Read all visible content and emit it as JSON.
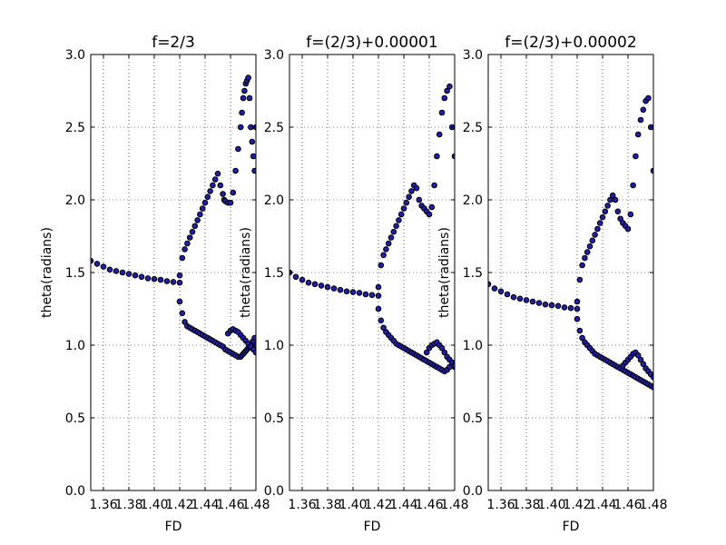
{
  "chart_data": [
    {
      "type": "scatter",
      "title": "f=2/3",
      "xlabel": "FD",
      "ylabel": "theta(radians)",
      "xlim": [
        1.35,
        1.48
      ],
      "ylim": [
        0.0,
        3.0
      ],
      "xticks": [
        "1.36",
        "1.38",
        "1.40",
        "1.42",
        "1.44",
        "1.46",
        "1.48"
      ],
      "yticks": [
        "0.0",
        "0.5",
        "1.0",
        "1.5",
        "2.0",
        "2.5",
        "3.0"
      ],
      "grid": true,
      "marker_fill": "#1f1fa8",
      "marker_edge": "#000000",
      "x": [
        1.35,
        1.355,
        1.36,
        1.365,
        1.37,
        1.375,
        1.38,
        1.385,
        1.39,
        1.395,
        1.4,
        1.405,
        1.41,
        1.415,
        1.42,
        1.42,
        1.422,
        1.424,
        1.426,
        1.428,
        1.43,
        1.432,
        1.434,
        1.436,
        1.438,
        1.44,
        1.442,
        1.444,
        1.446,
        1.448,
        1.45,
        1.452,
        1.454,
        1.455,
        1.456,
        1.458,
        1.46,
        1.462,
        1.464,
        1.466,
        1.468,
        1.469,
        1.47,
        1.471,
        1.472,
        1.473,
        1.474,
        1.475,
        1.476,
        1.477,
        1.478,
        1.479,
        1.48,
        1.42,
        1.422,
        1.424,
        1.426,
        1.428,
        1.43,
        1.432,
        1.434,
        1.436,
        1.438,
        1.44,
        1.442,
        1.444,
        1.446,
        1.448,
        1.45,
        1.452,
        1.454,
        1.456,
        1.458,
        1.46,
        1.462,
        1.464,
        1.466,
        1.468,
        1.469,
        1.47,
        1.471,
        1.472,
        1.473,
        1.474,
        1.475,
        1.476,
        1.477,
        1.478,
        1.479,
        1.48,
        1.458,
        1.46,
        1.462,
        1.464,
        1.466,
        1.468,
        1.47,
        1.472,
        1.474,
        1.476,
        1.478,
        1.48
      ],
      "y": [
        1.58,
        1.56,
        1.54,
        1.52,
        1.51,
        1.5,
        1.49,
        1.48,
        1.47,
        1.46,
        1.455,
        1.45,
        1.44,
        1.435,
        1.43,
        1.48,
        1.6,
        1.66,
        1.7,
        1.74,
        1.78,
        1.82,
        1.86,
        1.9,
        1.94,
        1.98,
        2.02,
        2.06,
        2.1,
        2.14,
        2.18,
        2.1,
        2.04,
        2.0,
        1.99,
        1.98,
        1.98,
        2.05,
        2.2,
        2.35,
        2.5,
        2.6,
        2.7,
        2.75,
        2.8,
        2.82,
        2.84,
        2.7,
        2.5,
        2.4,
        2.3,
        2.2,
        2.5,
        1.3,
        1.22,
        1.16,
        1.13,
        1.12,
        1.11,
        1.1,
        1.09,
        1.08,
        1.07,
        1.06,
        1.05,
        1.04,
        1.03,
        1.02,
        1.01,
        1.0,
        0.99,
        0.97,
        0.96,
        0.95,
        0.94,
        0.93,
        0.92,
        0.92,
        0.93,
        0.94,
        0.95,
        0.96,
        0.97,
        0.98,
        0.99,
        1.0,
        1.02,
        1.03,
        1.05,
        1.0,
        1.08,
        1.1,
        1.11,
        1.1,
        1.09,
        1.07,
        1.05,
        1.03,
        1.01,
        0.99,
        0.97,
        0.95
      ]
    },
    {
      "type": "scatter",
      "title": "f=(2/3)+0.00001",
      "xlabel": "FD",
      "ylabel": "theta(radians)",
      "xlim": [
        1.35,
        1.48
      ],
      "ylim": [
        0.0,
        3.0
      ],
      "xticks": [
        "1.36",
        "1.38",
        "1.40",
        "1.42",
        "1.44",
        "1.46",
        "1.48"
      ],
      "yticks": [
        "0.0",
        "0.5",
        "1.0",
        "1.5",
        "2.0",
        "2.5",
        "3.0"
      ],
      "grid": true,
      "marker_fill": "#1f1fa8",
      "marker_edge": "#000000",
      "x": [
        1.35,
        1.355,
        1.36,
        1.365,
        1.37,
        1.375,
        1.38,
        1.385,
        1.39,
        1.395,
        1.4,
        1.405,
        1.41,
        1.415,
        1.42,
        1.42,
        1.422,
        1.424,
        1.426,
        1.428,
        1.43,
        1.432,
        1.434,
        1.436,
        1.438,
        1.44,
        1.442,
        1.444,
        1.446,
        1.448,
        1.45,
        1.452,
        1.454,
        1.456,
        1.458,
        1.46,
        1.462,
        1.464,
        1.466,
        1.468,
        1.47,
        1.472,
        1.474,
        1.476,
        1.478,
        1.48,
        1.42,
        1.422,
        1.424,
        1.426,
        1.428,
        1.43,
        1.432,
        1.434,
        1.436,
        1.438,
        1.44,
        1.442,
        1.444,
        1.446,
        1.448,
        1.45,
        1.452,
        1.454,
        1.456,
        1.458,
        1.46,
        1.462,
        1.464,
        1.466,
        1.468,
        1.47,
        1.472,
        1.474,
        1.476,
        1.478,
        1.48,
        1.458,
        1.46,
        1.462,
        1.464,
        1.466,
        1.468,
        1.47,
        1.472,
        1.474,
        1.476,
        1.478,
        1.48
      ],
      "y": [
        1.5,
        1.47,
        1.45,
        1.43,
        1.42,
        1.41,
        1.4,
        1.39,
        1.38,
        1.37,
        1.365,
        1.36,
        1.35,
        1.345,
        1.34,
        1.4,
        1.55,
        1.62,
        1.66,
        1.7,
        1.74,
        1.78,
        1.82,
        1.86,
        1.9,
        1.94,
        1.98,
        2.02,
        2.06,
        2.1,
        2.08,
        2.0,
        1.96,
        1.94,
        1.92,
        1.9,
        1.95,
        2.1,
        2.3,
        2.45,
        2.6,
        2.7,
        2.75,
        2.78,
        2.5,
        2.3,
        1.25,
        1.17,
        1.12,
        1.09,
        1.07,
        1.05,
        1.03,
        1.01,
        1.0,
        0.99,
        0.98,
        0.97,
        0.96,
        0.95,
        0.94,
        0.93,
        0.92,
        0.91,
        0.9,
        0.89,
        0.88,
        0.87,
        0.86,
        0.85,
        0.84,
        0.83,
        0.82,
        0.83,
        0.85,
        0.88,
        0.85,
        0.95,
        0.98,
        1.0,
        1.01,
        1.02,
        1.0,
        0.98,
        0.95,
        0.92,
        0.9,
        0.88,
        0.86
      ]
    },
    {
      "type": "scatter",
      "title": "f=(2/3)+0.00002",
      "xlabel": "FD",
      "ylabel": "theta(radians)",
      "xlim": [
        1.35,
        1.48
      ],
      "ylim": [
        0.0,
        3.0
      ],
      "xticks": [
        "1.36",
        "1.38",
        "1.40",
        "1.42",
        "1.44",
        "1.46",
        "1.48"
      ],
      "yticks": [
        "0.0",
        "0.5",
        "1.0",
        "1.5",
        "2.0",
        "2.5",
        "3.0"
      ],
      "grid": true,
      "marker_fill": "#1f1fa8",
      "marker_edge": "#000000",
      "x": [
        1.35,
        1.355,
        1.36,
        1.365,
        1.37,
        1.375,
        1.38,
        1.385,
        1.39,
        1.395,
        1.4,
        1.405,
        1.41,
        1.415,
        1.42,
        1.42,
        1.422,
        1.424,
        1.426,
        1.428,
        1.43,
        1.432,
        1.434,
        1.436,
        1.438,
        1.44,
        1.442,
        1.444,
        1.446,
        1.448,
        1.45,
        1.452,
        1.454,
        1.456,
        1.458,
        1.46,
        1.462,
        1.464,
        1.466,
        1.468,
        1.47,
        1.472,
        1.474,
        1.476,
        1.478,
        1.48,
        1.42,
        1.422,
        1.424,
        1.426,
        1.428,
        1.43,
        1.432,
        1.434,
        1.436,
        1.438,
        1.44,
        1.442,
        1.444,
        1.446,
        1.448,
        1.45,
        1.452,
        1.454,
        1.456,
        1.458,
        1.46,
        1.462,
        1.464,
        1.466,
        1.468,
        1.47,
        1.472,
        1.474,
        1.476,
        1.478,
        1.48,
        1.456,
        1.458,
        1.46,
        1.462,
        1.464,
        1.466,
        1.468,
        1.47,
        1.472,
        1.474,
        1.476,
        1.478,
        1.48
      ],
      "y": [
        1.42,
        1.39,
        1.37,
        1.35,
        1.33,
        1.32,
        1.31,
        1.3,
        1.29,
        1.28,
        1.275,
        1.27,
        1.26,
        1.255,
        1.25,
        1.3,
        1.45,
        1.55,
        1.6,
        1.64,
        1.68,
        1.72,
        1.76,
        1.8,
        1.84,
        1.88,
        1.92,
        1.96,
        2.0,
        2.03,
        2.0,
        1.92,
        1.87,
        1.84,
        1.82,
        1.8,
        1.9,
        2.1,
        2.3,
        2.45,
        2.55,
        2.62,
        2.68,
        2.7,
        2.5,
        2.2,
        1.18,
        1.1,
        1.05,
        1.02,
        1.0,
        0.98,
        0.96,
        0.94,
        0.93,
        0.92,
        0.91,
        0.9,
        0.89,
        0.88,
        0.87,
        0.86,
        0.85,
        0.84,
        0.83,
        0.82,
        0.81,
        0.8,
        0.79,
        0.78,
        0.77,
        0.76,
        0.75,
        0.74,
        0.73,
        0.72,
        0.71,
        0.86,
        0.88,
        0.9,
        0.92,
        0.94,
        0.95,
        0.93,
        0.9,
        0.87,
        0.84,
        0.82,
        0.8,
        0.78
      ]
    }
  ]
}
